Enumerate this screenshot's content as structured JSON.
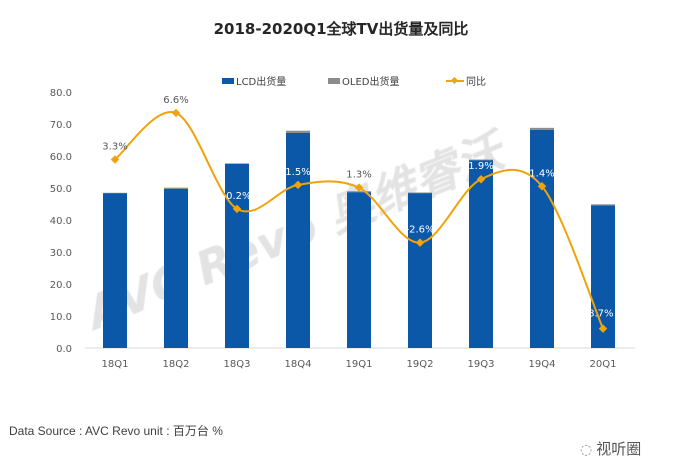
{
  "chart_data": {
    "type": "bar",
    "title": "2018-2020Q1全球TV出货量及同比",
    "categories": [
      "18Q1",
      "18Q2",
      "18Q3",
      "18Q4",
      "19Q1",
      "19Q2",
      "19Q3",
      "19Q4",
      "20Q1"
    ],
    "series": [
      {
        "name": "LCD出货量",
        "kind": "bar",
        "stack": "a",
        "color": "#0B57A8",
        "values": [
          48.4,
          49.7,
          57.5,
          67.2,
          48.7,
          48.4,
          58.7,
          68.2,
          44.6
        ]
      },
      {
        "name": "OLED出货量",
        "kind": "bar",
        "stack": "a",
        "color": "#8C8C8C",
        "values": [
          0.1,
          0.4,
          0.2,
          0.7,
          0.3,
          0.2,
          0.2,
          0.6,
          0.3
        ]
      },
      {
        "name": "同比",
        "kind": "line",
        "axis": "secondary",
        "smooth": true,
        "color": "#F0A30A",
        "values": [
          3.3,
          6.6,
          -0.2,
          1.5,
          1.3,
          -2.6,
          1.9,
          1.4,
          -8.7
        ],
        "labels": [
          "3.3%",
          "6.6%",
          "-0.2%",
          "1.5%",
          "1.3%",
          "-2.6%",
          "1.9%",
          "1.4%",
          "-8.7%"
        ]
      }
    ],
    "ylim": [
      0,
      80
    ],
    "yticks": [
      "0.0",
      "10.0",
      "20.0",
      "30.0",
      "40.0",
      "50.0",
      "60.0",
      "70.0",
      "80.0"
    ],
    "legend": "top",
    "grid": false
  },
  "watermark": "AVC Revo 奥维睿沃",
  "footer": {
    "source": "Data Source : AVC Revo  unit : 百万台 %"
  },
  "brand": {
    "name": "视听圈",
    "icon": "wechat-icon"
  }
}
